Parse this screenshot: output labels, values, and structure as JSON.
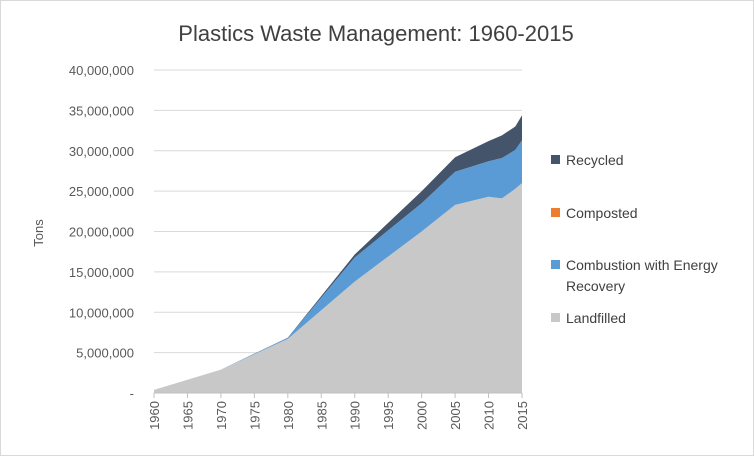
{
  "chart_data": {
    "type": "area",
    "stacked": true,
    "title": "Plastics Waste Management: 1960-2015",
    "xlabel": "",
    "ylabel": "Tons",
    "ylim": [
      0,
      40000000
    ],
    "yticks": [
      0,
      5000000,
      10000000,
      15000000,
      20000000,
      25000000,
      30000000,
      35000000,
      40000000
    ],
    "ytick_labels": [
      "-",
      "5,000,000",
      "10,000,000",
      "15,000,000",
      "20,000,000",
      "25,000,000",
      "30,000,000",
      "35,000,000",
      "40,000,000"
    ],
    "x": [
      1960,
      1970,
      1980,
      1990,
      2000,
      2005,
      2010,
      2012,
      2014,
      2015
    ],
    "xtick_labels": [
      "1960",
      "1965",
      "1970",
      "1975",
      "1980",
      "1985",
      "1990",
      "1995",
      "2000",
      "2005",
      "2010",
      "2015"
    ],
    "grid": true,
    "legend_position": "right",
    "series": [
      {
        "name": "Landfilled",
        "color": "#c8c8c8",
        "values": [
          390000,
          2900000,
          6700000,
          13800000,
          20000000,
          23300000,
          24300000,
          24100000,
          25300000,
          26000000
        ]
      },
      {
        "name": "Combustion with Energy Recovery",
        "color": "#5b9bd5",
        "values": [
          0,
          0,
          140000,
          2980000,
          3500000,
          4100000,
          4400000,
          5000000,
          4800000,
          5300000
        ]
      },
      {
        "name": "Composted",
        "color": "#ed7d31",
        "values": [
          0,
          0,
          0,
          0,
          0,
          0,
          0,
          0,
          0,
          0
        ]
      },
      {
        "name": "Recycled",
        "color": "#44546a",
        "values": [
          0,
          0,
          20000,
          370000,
          1480000,
          1800000,
          2500000,
          2800000,
          2900000,
          3100000
        ]
      }
    ]
  }
}
